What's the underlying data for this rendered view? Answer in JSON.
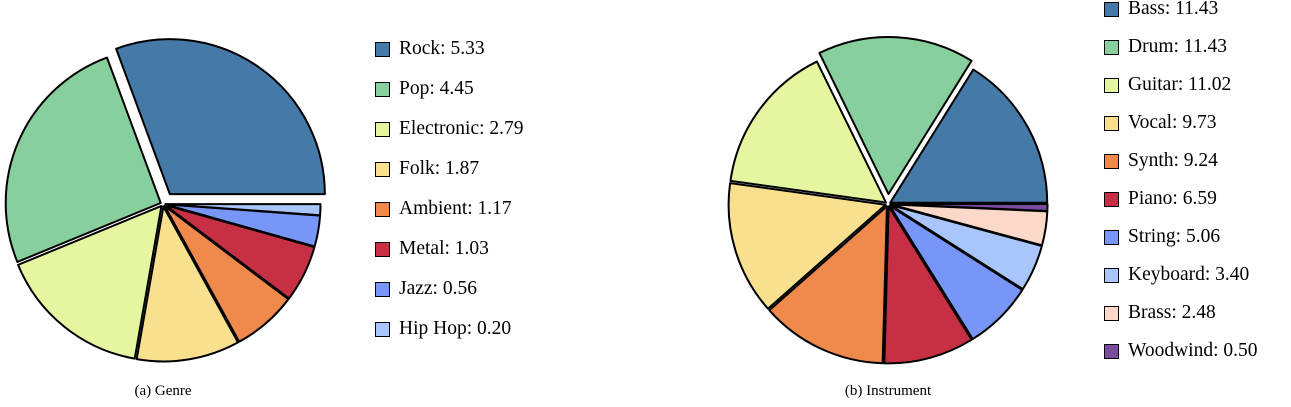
{
  "chart_data": [
    {
      "type": "pie",
      "caption": "(a) Genre",
      "slices": [
        {
          "label": "Rock",
          "value": 5.33,
          "value_text": "5.33",
          "color": "#4579a8"
        },
        {
          "label": "Pop",
          "value": 4.45,
          "value_text": "4.45",
          "color": "#88cf9e"
        },
        {
          "label": "Electronic",
          "value": 2.79,
          "value_text": "2.79",
          "color": "#e4f7a0"
        },
        {
          "label": "Folk",
          "value": 1.87,
          "value_text": "1.87",
          "color": "#f8e08f"
        },
        {
          "label": "Ambient",
          "value": 1.17,
          "value_text": "1.17",
          "color": "#f08a4c"
        },
        {
          "label": "Metal",
          "value": 1.03,
          "value_text": "1.03",
          "color": "#c72f45"
        },
        {
          "label": "Jazz",
          "value": 0.56,
          "value_text": "0.56",
          "color": "#7896f7"
        },
        {
          "label": "Hip Hop",
          "value": 0.2,
          "value_text": "0.20",
          "color": "#a8c6fb"
        }
      ],
      "exploded": [
        "Rock"
      ],
      "legend_position": "right"
    },
    {
      "type": "pie",
      "caption": "(b) Instrument",
      "slices": [
        {
          "label": "Bass",
          "value": 11.43,
          "value_text": "11.43",
          "color": "#4579a8"
        },
        {
          "label": "Drum",
          "value": 11.43,
          "value_text": "11.43",
          "color": "#88cf9e"
        },
        {
          "label": "Guitar",
          "value": 11.02,
          "value_text": "11.02",
          "color": "#e4f7a0"
        },
        {
          "label": "Vocal",
          "value": 9.73,
          "value_text": "9.73",
          "color": "#f8e08f"
        },
        {
          "label": "Synth",
          "value": 9.24,
          "value_text": "9.24",
          "color": "#f08a4c"
        },
        {
          "label": "Piano",
          "value": 6.59,
          "value_text": "6.59",
          "color": "#c72f45"
        },
        {
          "label": "String",
          "value": 5.06,
          "value_text": "5.06",
          "color": "#7896f7"
        },
        {
          "label": "Keyboard",
          "value": 3.4,
          "value_text": "3.40",
          "color": "#a8c6fb"
        },
        {
          "label": "Brass",
          "value": 2.48,
          "value_text": "2.48",
          "color": "#fbd8c8"
        },
        {
          "label": "Woodwind",
          "value": 0.5,
          "value_text": "0.50",
          "color": "#7a4a9e"
        }
      ],
      "exploded": [
        "Drum"
      ],
      "legend_position": "right"
    }
  ]
}
